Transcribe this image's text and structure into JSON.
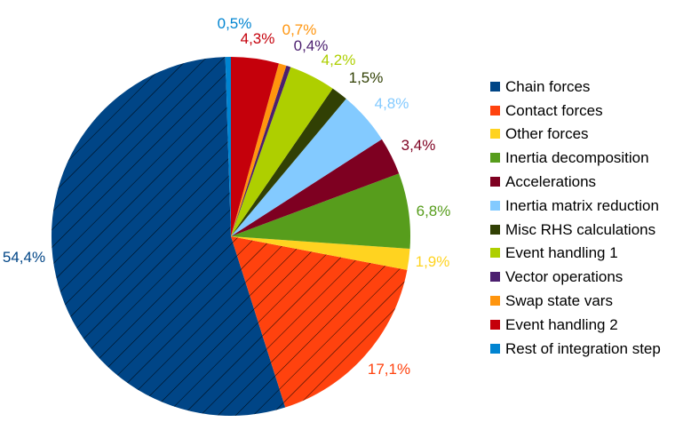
{
  "chart_data": {
    "type": "pie",
    "title": "",
    "series": [
      {
        "categories": [
          "Chain forces",
          "Contact forces",
          "Other forces",
          "Inertia decomposition",
          "Accelerations",
          "Inertia matrix reduction",
          "Misc RHS calculations",
          "Event handling 1",
          "Vector operations",
          "Swap state vars",
          "Event handling 2",
          "Rest of integration step"
        ],
        "values": [
          54.4,
          17.1,
          1.9,
          6.8,
          3.4,
          4.8,
          1.5,
          4.2,
          0.4,
          0.7,
          4.3,
          0.5
        ],
        "value_labels": [
          "54,4%",
          "17,1%",
          "1,9%",
          "6,8%",
          "3,4%",
          "4,8%",
          "1,5%",
          "4,2%",
          "0,4%",
          "0,7%",
          "4,3%",
          "0,5%"
        ],
        "colors": [
          "#004586",
          "#ff420e",
          "#ffd320",
          "#579d1c",
          "#7e0021",
          "#83caff",
          "#314004",
          "#aecf00",
          "#4b1f6f",
          "#ff950e",
          "#c5000b",
          "#0084d1"
        ]
      }
    ],
    "hatched_slices": [
      "Chain forces",
      "Contact forces"
    ],
    "legend_position": "right"
  }
}
